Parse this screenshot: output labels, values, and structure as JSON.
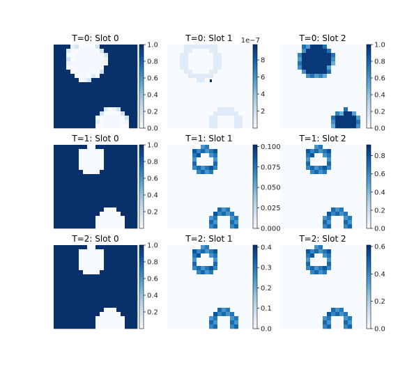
{
  "palette": {
    "dark": "#08306b",
    "mid": "#2171b5",
    "light": "#c6dbef",
    "pale": "#f7fbff"
  },
  "chart_data": [
    {
      "type": "heatmap",
      "title": "T=0: Slot 0",
      "mode": "full_invert_outline",
      "colorbar": {
        "range": [
          0,
          1.0
        ],
        "ticks": [
          0.0,
          0.2,
          0.4,
          0.6,
          0.8,
          1.0
        ],
        "tick_labels": [
          "0.0",
          "0.2",
          "0.4",
          "0.6",
          "0.8",
          "1.0"
        ],
        "exponent": ""
      },
      "objects": [
        {
          "cx": 0.39,
          "cy": 0.19,
          "r": 0.2,
          "clip_top": true
        },
        {
          "cx": 0.7,
          "cy": 0.94,
          "r": 0.16
        }
      ]
    },
    {
      "type": "heatmap",
      "title": "T=0: Slot 1",
      "mode": "faint",
      "colorbar": {
        "range": [
          0,
          9.8e-07
        ],
        "ticks": [
          2e-07,
          4e-07,
          6e-07,
          8e-07
        ],
        "tick_labels": [
          "2",
          "4",
          "6",
          "8"
        ],
        "exponent": "1e−7"
      },
      "objects": [
        {
          "cx": 0.4,
          "cy": 0.19,
          "r": 0.2,
          "clip_top": true
        },
        {
          "cx": 0.7,
          "cy": 0.94,
          "r": 0.16
        }
      ]
    },
    {
      "type": "heatmap",
      "title": "T=0: Slot 2",
      "mode": "filled",
      "colorbar": {
        "range": [
          0,
          1.0
        ],
        "ticks": [
          0.0,
          0.2,
          0.4,
          0.6,
          0.8,
          1.0
        ],
        "tick_labels": [
          "0.0",
          "0.2",
          "0.4",
          "0.6",
          "0.8",
          "1.0"
        ],
        "exponent": ""
      },
      "objects": [
        {
          "cx": 0.42,
          "cy": 0.19,
          "r": 0.22,
          "clip_top": true
        },
        {
          "cx": 0.78,
          "cy": 0.94,
          "r": 0.17
        }
      ]
    },
    {
      "type": "heatmap",
      "title": "T=1: Slot 0",
      "mode": "full_invert_outline",
      "colorbar": {
        "range": [
          0,
          1.0
        ],
        "ticks": [
          0.2,
          0.4,
          0.6,
          0.8,
          1.0
        ],
        "tick_labels": [
          "0.2",
          "0.4",
          "0.6",
          "0.8",
          "1.0"
        ],
        "exponent": ""
      },
      "objects": [
        {
          "cx": 0.45,
          "cy": 0.19,
          "r": 0.13
        },
        {
          "cx": 0.68,
          "cy": 0.93,
          "r": 0.13
        }
      ]
    },
    {
      "type": "heatmap",
      "title": "T=1: Slot 1",
      "mode": "ring",
      "colorbar": {
        "range": [
          0,
          0.102
        ],
        "ticks": [
          0.0,
          0.025,
          0.05,
          0.075,
          0.1
        ],
        "tick_labels": [
          "0.000",
          "0.025",
          "0.050",
          "0.075",
          "0.100"
        ],
        "exponent": ""
      },
      "objects": [
        {
          "cx": 0.45,
          "cy": 0.19,
          "r": 0.13
        },
        {
          "cx": 0.68,
          "cy": 0.93,
          "r": 0.13
        }
      ]
    },
    {
      "type": "heatmap",
      "title": "T=1: Slot 2",
      "mode": "ring",
      "colorbar": {
        "range": [
          0,
          0.92
        ],
        "ticks": [
          0.0,
          0.2,
          0.4,
          0.6,
          0.8
        ],
        "tick_labels": [
          "0.0",
          "0.2",
          "0.4",
          "0.6",
          "0.8"
        ],
        "exponent": ""
      },
      "objects": [
        {
          "cx": 0.45,
          "cy": 0.19,
          "r": 0.13
        },
        {
          "cx": 0.68,
          "cy": 0.93,
          "r": 0.13
        }
      ]
    },
    {
      "type": "heatmap",
      "title": "T=2: Slot 0",
      "mode": "full_invert_outline",
      "colorbar": {
        "range": [
          0,
          1.0
        ],
        "ticks": [
          0.2,
          0.4,
          0.6,
          0.8,
          1.0
        ],
        "tick_labels": [
          "0.2",
          "0.4",
          "0.6",
          "0.8",
          "1.0"
        ],
        "exponent": ""
      },
      "objects": [
        {
          "cx": 0.45,
          "cy": 0.19,
          "r": 0.13
        },
        {
          "cx": 0.68,
          "cy": 0.93,
          "r": 0.13
        }
      ]
    },
    {
      "type": "heatmap",
      "title": "T=2: Slot 1",
      "mode": "ring",
      "colorbar": {
        "range": [
          0,
          0.41
        ],
        "ticks": [
          0.0,
          0.1,
          0.2,
          0.3,
          0.4
        ],
        "tick_labels": [
          "0.0",
          "0.1",
          "0.2",
          "0.3",
          "0.4"
        ],
        "exponent": ""
      },
      "objects": [
        {
          "cx": 0.45,
          "cy": 0.19,
          "r": 0.13
        },
        {
          "cx": 0.68,
          "cy": 0.93,
          "r": 0.13
        }
      ]
    },
    {
      "type": "heatmap",
      "title": "T=2: Slot 2",
      "mode": "ring",
      "colorbar": {
        "range": [
          0,
          0.61
        ],
        "ticks": [
          0.0,
          0.2,
          0.4,
          0.6
        ],
        "tick_labels": [
          "0.0",
          "0.2",
          "0.4",
          "0.6"
        ],
        "exponent": ""
      },
      "objects": [
        {
          "cx": 0.45,
          "cy": 0.19,
          "r": 0.13
        },
        {
          "cx": 0.68,
          "cy": 0.93,
          "r": 0.13
        }
      ]
    }
  ]
}
